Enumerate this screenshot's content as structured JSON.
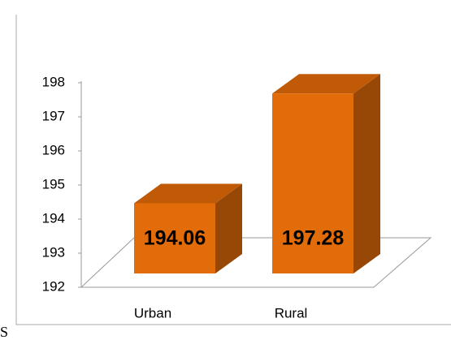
{
  "chart_data": {
    "type": "bar3d",
    "categories": [
      "Urban",
      "Rural"
    ],
    "values": [
      194.06,
      197.28
    ],
    "color": "#e36c0a",
    "ylim": [
      192,
      198
    ],
    "yticks": [
      192,
      193,
      194,
      195,
      196,
      197,
      198
    ]
  },
  "fragment": "S"
}
